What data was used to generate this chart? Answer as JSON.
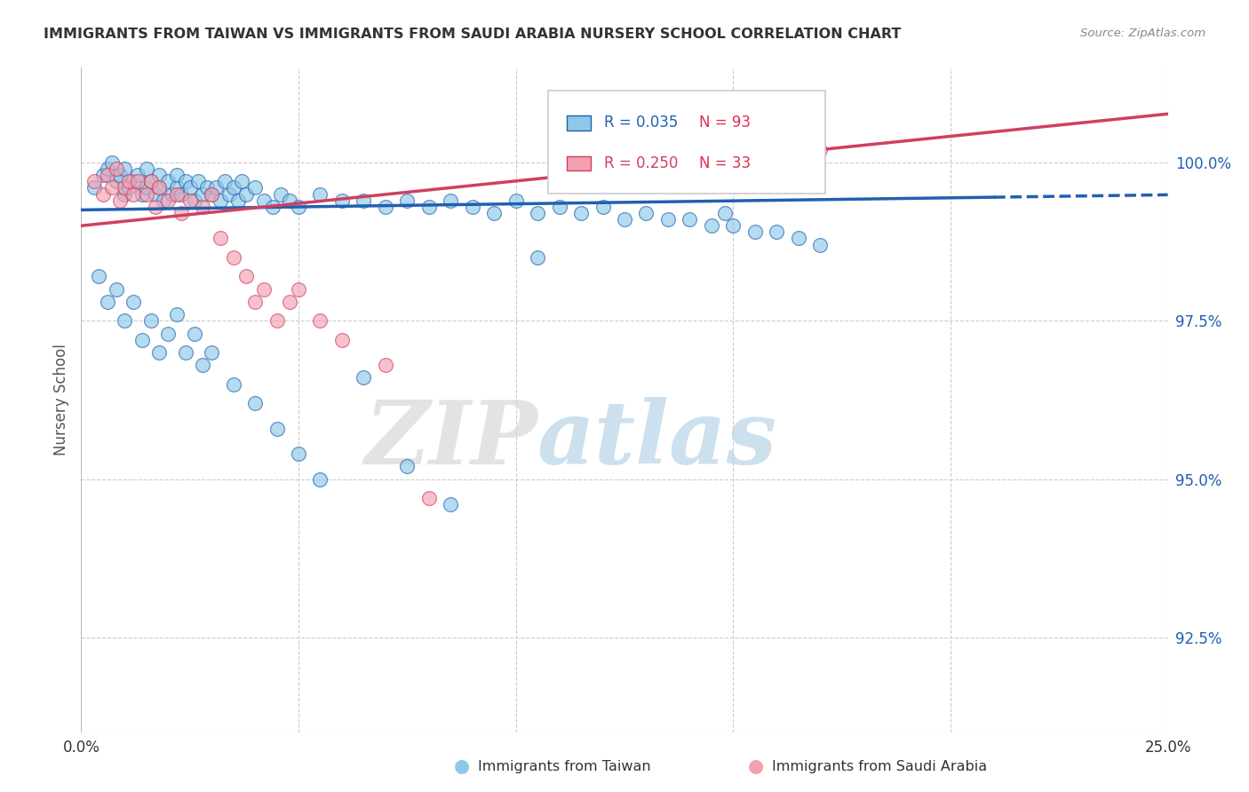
{
  "title": "IMMIGRANTS FROM TAIWAN VS IMMIGRANTS FROM SAUDI ARABIA NURSERY SCHOOL CORRELATION CHART",
  "source": "Source: ZipAtlas.com",
  "ylabel": "Nursery School",
  "label_taiwan": "Immigrants from Taiwan",
  "label_saudi": "Immigrants from Saudi Arabia",
  "color_taiwan": "#8ec8e8",
  "color_saudi": "#f4a0b0",
  "color_trend_taiwan": "#2060b0",
  "color_trend_saudi": "#d04060",
  "watermark_zip": "ZIP",
  "watermark_atlas": "atlas",
  "xlim": [
    0.0,
    0.25
  ],
  "ylim": [
    91.0,
    101.5
  ],
  "ytick_vals": [
    92.5,
    95.0,
    97.5,
    100.0
  ],
  "ytick_labels": [
    "92.5%",
    "95.0%",
    "97.5%",
    "100.0%"
  ],
  "legend_r1": "R = 0.035",
  "legend_n1": "N = 93",
  "legend_r2": "R = 0.250",
  "legend_n2": "N = 33",
  "tw_x": [
    0.003,
    0.005,
    0.006,
    0.007,
    0.008,
    0.009,
    0.01,
    0.01,
    0.011,
    0.012,
    0.013,
    0.014,
    0.015,
    0.015,
    0.016,
    0.017,
    0.018,
    0.018,
    0.019,
    0.02,
    0.021,
    0.022,
    0.022,
    0.023,
    0.024,
    0.025,
    0.026,
    0.027,
    0.028,
    0.029,
    0.03,
    0.031,
    0.032,
    0.033,
    0.034,
    0.035,
    0.036,
    0.037,
    0.038,
    0.04,
    0.042,
    0.044,
    0.046,
    0.048,
    0.05,
    0.055,
    0.06,
    0.065,
    0.07,
    0.075,
    0.08,
    0.085,
    0.09,
    0.095,
    0.1,
    0.105,
    0.11,
    0.115,
    0.12,
    0.125,
    0.13,
    0.135,
    0.14,
    0.145,
    0.148,
    0.15,
    0.155,
    0.16,
    0.165,
    0.17,
    0.004,
    0.006,
    0.008,
    0.01,
    0.012,
    0.014,
    0.016,
    0.018,
    0.02,
    0.022,
    0.024,
    0.026,
    0.028,
    0.03,
    0.035,
    0.04,
    0.045,
    0.05,
    0.055,
    0.065,
    0.075,
    0.085,
    0.105
  ],
  "tw_y": [
    99.6,
    99.8,
    99.9,
    100.0,
    99.7,
    99.8,
    99.5,
    99.9,
    99.6,
    99.7,
    99.8,
    99.5,
    99.6,
    99.9,
    99.7,
    99.5,
    99.8,
    99.6,
    99.4,
    99.7,
    99.5,
    99.6,
    99.8,
    99.5,
    99.7,
    99.6,
    99.4,
    99.7,
    99.5,
    99.6,
    99.5,
    99.6,
    99.4,
    99.7,
    99.5,
    99.6,
    99.4,
    99.7,
    99.5,
    99.6,
    99.4,
    99.3,
    99.5,
    99.4,
    99.3,
    99.5,
    99.4,
    99.4,
    99.3,
    99.4,
    99.3,
    99.4,
    99.3,
    99.2,
    99.4,
    99.2,
    99.3,
    99.2,
    99.3,
    99.1,
    99.2,
    99.1,
    99.1,
    99.0,
    99.2,
    99.0,
    98.9,
    98.9,
    98.8,
    98.7,
    98.2,
    97.8,
    98.0,
    97.5,
    97.8,
    97.2,
    97.5,
    97.0,
    97.3,
    97.6,
    97.0,
    97.3,
    96.8,
    97.0,
    96.5,
    96.2,
    95.8,
    95.4,
    95.0,
    96.6,
    95.2,
    94.6,
    98.5
  ],
  "sa_x": [
    0.003,
    0.005,
    0.006,
    0.007,
    0.008,
    0.009,
    0.01,
    0.011,
    0.012,
    0.013,
    0.015,
    0.016,
    0.017,
    0.018,
    0.02,
    0.022,
    0.023,
    0.025,
    0.028,
    0.03,
    0.032,
    0.035,
    0.038,
    0.04,
    0.042,
    0.045,
    0.048,
    0.05,
    0.055,
    0.06,
    0.07,
    0.08,
    0.17
  ],
  "sa_y": [
    99.7,
    99.5,
    99.8,
    99.6,
    99.9,
    99.4,
    99.6,
    99.7,
    99.5,
    99.7,
    99.5,
    99.7,
    99.3,
    99.6,
    99.4,
    99.5,
    99.2,
    99.4,
    99.3,
    99.5,
    98.8,
    98.5,
    98.2,
    97.8,
    98.0,
    97.5,
    97.8,
    98.0,
    97.5,
    97.2,
    96.8,
    94.7,
    100.2
  ]
}
